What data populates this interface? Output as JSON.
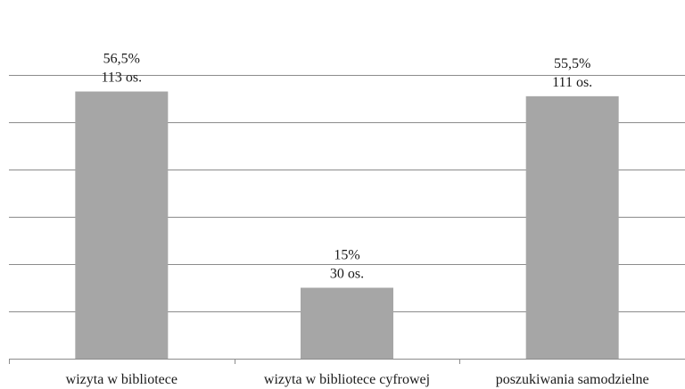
{
  "chart_data": {
    "type": "bar",
    "categories": [
      "wizyta w bibliotece",
      "wizyta w bibliotece cyfrowej",
      "poszukiwania samodzielne"
    ],
    "values": [
      56.5,
      15,
      55.5
    ],
    "data_labels": [
      {
        "percent": "56,5%",
        "count": "113 os."
      },
      {
        "percent": "15%",
        "count": "30 os."
      },
      {
        "percent": "55,5%",
        "count": "111 os."
      }
    ],
    "title": "",
    "xlabel": "",
    "ylabel": "",
    "ylim": [
      0,
      60
    ],
    "grid": true,
    "y_tick_labels_visible": false,
    "bar_color": "#a6a6a6",
    "gridline_color": "#8c8c8c"
  }
}
